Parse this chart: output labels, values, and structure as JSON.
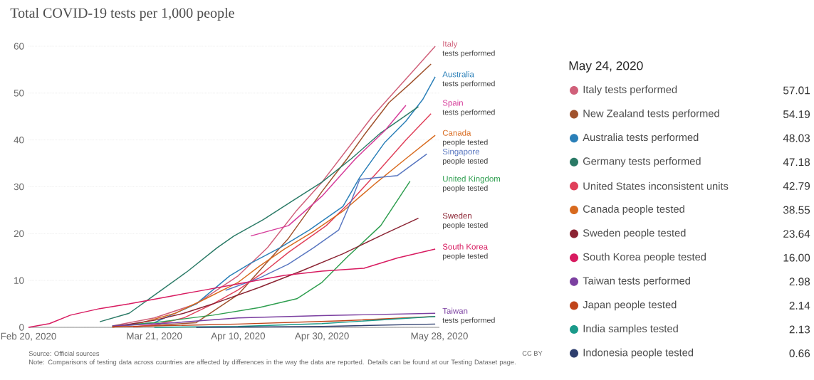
{
  "chart_data": [
    {
      "type": "line",
      "title": "Total COVID-19 tests per 1,000 people",
      "xlim": [
        "2020-02-20",
        "2020-05-28"
      ],
      "ylim": [
        0,
        60
      ],
      "xticks": [
        {
          "value": "2020-02-20",
          "label": "Feb 20, 2020"
        },
        {
          "value": "2020-03-21",
          "label": "Mar 21, 2020"
        },
        {
          "value": "2020-04-10",
          "label": "Apr 10, 2020"
        },
        {
          "value": "2020-04-30",
          "label": "Apr 30, 2020"
        },
        {
          "value": "2020-05-28",
          "label": "May 28, 2020"
        }
      ],
      "yticks": [
        0,
        10,
        20,
        30,
        40,
        50,
        60
      ],
      "grid": "y",
      "legend": false,
      "series": [
        {
          "name": "Italy",
          "color": "#d0607a",
          "x": [
            "2020-03-11",
            "2020-03-21",
            "2020-03-31",
            "2020-04-10",
            "2020-04-17",
            "2020-04-24",
            "2020-04-30",
            "2020-05-06",
            "2020-05-12",
            "2020-05-17",
            "2020-05-22",
            "2020-05-27"
          ],
          "values": [
            0.3,
            2,
            5,
            11,
            17,
            25,
            31,
            38,
            45,
            50,
            55,
            60
          ]
        },
        {
          "color": "#a0522d",
          "x": [
            "2020-03-16",
            "2020-03-31",
            "2020-04-10",
            "2020-04-15",
            "2020-04-22",
            "2020-04-30",
            "2020-05-06",
            "2020-05-10",
            "2020-05-16",
            "2020-05-21",
            "2020-05-26"
          ],
          "values": [
            0.1,
            1,
            7,
            12,
            19,
            29,
            36,
            41,
            48,
            52,
            56.2
          ]
        },
        {
          "name": "Australia",
          "color": "#2a7fb8",
          "x": [
            "2020-03-11",
            "2020-03-21",
            "2020-03-31",
            "2020-04-08",
            "2020-04-13",
            "2020-04-20",
            "2020-04-27",
            "2020-05-05",
            "2020-05-09",
            "2020-05-15",
            "2020-05-20",
            "2020-05-24",
            "2020-05-27"
          ],
          "values": [
            0.1,
            1,
            5,
            11,
            13.7,
            17,
            20.8,
            25.8,
            32,
            39.5,
            44,
            48.6,
            53.5
          ]
        },
        {
          "color": "#2a7a66",
          "x": [
            "2020-03-08",
            "2020-03-15",
            "2020-03-22",
            "2020-03-29",
            "2020-04-05",
            "2020-04-09",
            "2020-04-16",
            "2020-04-23",
            "2020-04-30",
            "2020-05-07",
            "2020-05-14",
            "2020-05-23"
          ],
          "values": [
            1.2,
            3,
            7.5,
            12,
            17,
            19.5,
            23,
            27,
            31,
            36,
            41.5,
            47.1
          ]
        },
        {
          "color": "#e0405a",
          "x": [
            "2020-03-16",
            "2020-03-21",
            "2020-03-28",
            "2020-04-04",
            "2020-04-10",
            "2020-04-16",
            "2020-04-22",
            "2020-05-01",
            "2020-05-07",
            "2020-05-14",
            "2020-05-20",
            "2020-05-26"
          ],
          "values": [
            0.1,
            0.5,
            2,
            5,
            8,
            11.7,
            16,
            21.7,
            27,
            33.9,
            40,
            45.6
          ]
        },
        {
          "name": "Spain",
          "color": "#d63c9a",
          "x": [
            "2020-04-13",
            "2020-04-22",
            "2020-04-30",
            "2020-05-08",
            "2020-05-15",
            "2020-05-20"
          ],
          "values": [
            19.5,
            21.7,
            28,
            36,
            42,
            47.4
          ]
        },
        {
          "name": "Canada",
          "color": "#d86a1e",
          "x": [
            "2020-03-11",
            "2020-03-18",
            "2020-03-26",
            "2020-04-02",
            "2020-04-10",
            "2020-04-15",
            "2020-04-21",
            "2020-04-28",
            "2020-05-05",
            "2020-05-13",
            "2020-05-20",
            "2020-05-27"
          ],
          "values": [
            0,
            1,
            3,
            6,
            9.6,
            13,
            16.7,
            20.5,
            24.8,
            30.9,
            36,
            41
          ]
        },
        {
          "name": "Singapore",
          "color": "#5876c0",
          "x": [
            "2020-04-07",
            "2020-04-15",
            "2020-04-22",
            "2020-04-28",
            "2020-05-04",
            "2020-05-07",
            "2020-05-09",
            "2020-05-18",
            "2020-05-25"
          ],
          "values": [
            7.9,
            10.5,
            13.5,
            17,
            20.8,
            27,
            31.6,
            32.4,
            37
          ]
        },
        {
          "name": "United Kingdom",
          "color": "#2e9e4f",
          "x": [
            "2020-03-11",
            "2020-03-21",
            "2020-03-28",
            "2020-04-04",
            "2020-04-15",
            "2020-04-24",
            "2020-04-30",
            "2020-05-06",
            "2020-05-14",
            "2020-05-21"
          ],
          "values": [
            0.3,
            1,
            1.8,
            2.6,
            4.2,
            6.1,
            9.6,
            15,
            21.7,
            31.2
          ]
        },
        {
          "name": "Sweden",
          "color": "#8b2332",
          "x": [
            "2020-03-11",
            "2020-03-21",
            "2020-03-28",
            "2020-04-04",
            "2020-04-15",
            "2020-04-25",
            "2020-05-05",
            "2020-05-15",
            "2020-05-23"
          ],
          "values": [
            0.1,
            1.5,
            3,
            5,
            8.5,
            12,
            15.7,
            20,
            23.3
          ]
        },
        {
          "name": "South Korea",
          "color": "#d81b60",
          "x": [
            "2020-02-20",
            "2020-02-25",
            "2020-03-01",
            "2020-03-08",
            "2020-03-15",
            "2020-03-24",
            "2020-04-01",
            "2020-04-09",
            "2020-04-21",
            "2020-04-30",
            "2020-05-10",
            "2020-05-18",
            "2020-05-27"
          ],
          "values": [
            0,
            0.8,
            2.6,
            4,
            5,
            6.5,
            7.8,
            9.1,
            11.1,
            12,
            12.6,
            14.8,
            16.7
          ]
        },
        {
          "name": "Taiwan",
          "color": "#7b3fa0",
          "x": [
            "2020-03-11",
            "2020-03-26",
            "2020-04-10",
            "2020-04-30",
            "2020-05-27"
          ],
          "values": [
            0.3,
            1,
            2,
            2.5,
            3
          ]
        },
        {
          "color": "#c0441a",
          "x": [
            "2020-03-11",
            "2020-04-10",
            "2020-05-05",
            "2020-05-27"
          ],
          "values": [
            0.1,
            0.7,
            1.4,
            2.3
          ]
        },
        {
          "color": "#1a9a8a",
          "x": [
            "2020-03-21",
            "2020-04-10",
            "2020-04-30",
            "2020-05-27"
          ],
          "values": [
            0,
            0.2,
            0.8,
            2.3
          ]
        },
        {
          "color": "#2e3f6e",
          "x": [
            "2020-03-31",
            "2020-04-30",
            "2020-05-27"
          ],
          "values": [
            0,
            0.2,
            0.7
          ]
        }
      ],
      "annotations": [
        "tests performed",
        "tests performed",
        "tests performed",
        "people tested",
        "people tested",
        "people tested",
        "people tested",
        "people tested",
        "tests performed",
        "Source: Official sources",
        "CC BY",
        "Note: Comparisons of testing data across countries are affected by differences in the way the data are reported. Details can be found at our Testing Dataset page."
      ]
    },
    {
      "type": "other",
      "title": "May 24, 2020",
      "categories": [
        "Italy tests performed",
        "New Zealand tests performed",
        "Australia tests performed",
        "Germany tests performed",
        "United States inconsistent units",
        "Canada people tested",
        "Sweden people tested",
        "South Korea people tested",
        "Taiwan tests performed",
        "Japan people tested",
        "India samples tested",
        "Indonesia people tested"
      ],
      "value_labels": [
        "57.01",
        "54.19",
        "48.03",
        "47.18",
        "42.79",
        "38.55",
        "23.64",
        "16.00",
        "2.98",
        "2.14",
        "2.13",
        "0.66"
      ],
      "colors": [
        "#d0607a",
        "#a0522d",
        "#2a7fb8",
        "#2a7a66",
        "#e0405a",
        "#d86a1e",
        "#8b2332",
        "#d81b60",
        "#7b3fa0",
        "#c0441a",
        "#1a9a8a",
        "#2e3f6e"
      ]
    }
  ]
}
